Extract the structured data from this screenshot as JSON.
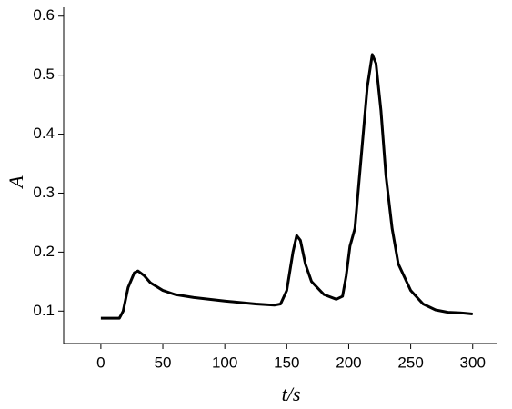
{
  "chart_data": {
    "type": "line",
    "x_label": "t/s",
    "y_label": "A",
    "x": [
      0,
      15,
      18,
      22,
      27,
      30,
      35,
      40,
      50,
      60,
      75,
      100,
      125,
      140,
      145,
      150,
      155,
      158,
      161,
      165,
      170,
      180,
      190,
      195,
      198,
      201,
      205,
      210,
      215,
      219,
      222,
      226,
      230,
      235,
      240,
      250,
      260,
      270,
      280,
      290,
      300
    ],
    "series": [
      {
        "color": "#000000",
        "values": [
          0.088,
          0.088,
          0.1,
          0.14,
          0.165,
          0.168,
          0.16,
          0.148,
          0.135,
          0.128,
          0.123,
          0.117,
          0.112,
          0.11,
          0.112,
          0.135,
          0.2,
          0.228,
          0.22,
          0.18,
          0.15,
          0.128,
          0.12,
          0.125,
          0.16,
          0.21,
          0.24,
          0.36,
          0.48,
          0.535,
          0.52,
          0.44,
          0.33,
          0.24,
          0.18,
          0.135,
          0.112,
          0.102,
          0.098,
          0.097,
          0.095
        ]
      }
    ],
    "xlim": [
      -30,
      320
    ],
    "xticks": [
      0,
      50,
      100,
      150,
      200,
      250,
      300
    ],
    "ylim": [
      0.045,
      0.615
    ],
    "yticks": [
      0.1,
      0.2,
      0.3,
      0.4,
      0.5,
      0.6
    ]
  }
}
